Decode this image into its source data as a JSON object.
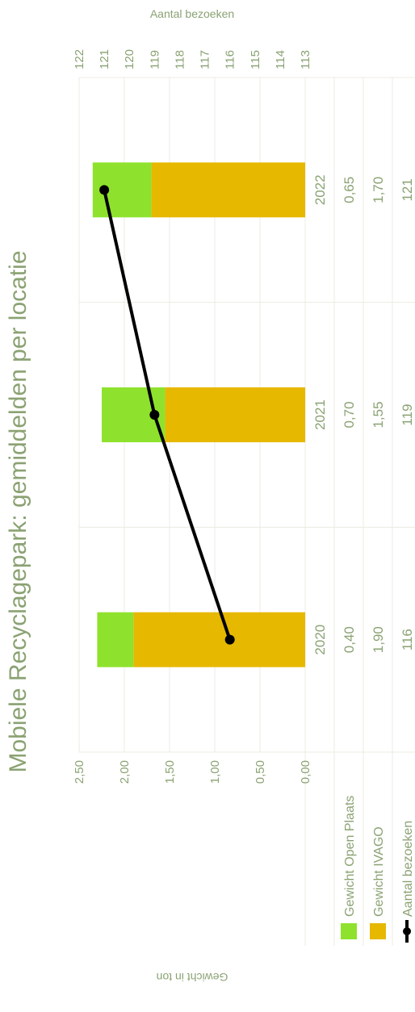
{
  "chart_data": {
    "type": "bar",
    "title": "Mobiele Recyclagepark: gemiddelden per locatie",
    "categories": [
      "2020",
      "2021",
      "2022"
    ],
    "series": [
      {
        "name": "Gewicht Open Plaats",
        "kind": "bar",
        "axis": "left",
        "color": "#8ee22d",
        "values": [
          "0,40",
          "0,70",
          "0,65"
        ],
        "numeric": [
          0.4,
          0.7,
          0.65
        ]
      },
      {
        "name": "Gewicht IVAGO",
        "kind": "bar",
        "axis": "left",
        "color": "#e6b800",
        "values": [
          "1,90",
          "1,55",
          "1,70"
        ],
        "numeric": [
          1.9,
          1.55,
          1.7
        ]
      },
      {
        "name": "Aantal bezoeken",
        "kind": "line",
        "axis": "right",
        "color": "#000000",
        "values": [
          "116",
          "119",
          "121"
        ],
        "numeric": [
          116,
          119,
          121
        ]
      }
    ],
    "y_left": {
      "label": "Gewicht in ton",
      "ylim": [
        0,
        2.5
      ],
      "ticks": [
        "0,00",
        "0,50",
        "1,00",
        "1,50",
        "2,00",
        "2,50"
      ],
      "tick_values": [
        0,
        0.5,
        1.0,
        1.5,
        2.0,
        2.5
      ]
    },
    "y_right": {
      "label": "Aantal bezoeken",
      "ylim": [
        113,
        122
      ],
      "ticks": [
        "113",
        "114",
        "115",
        "116",
        "117",
        "118",
        "119",
        "120",
        "121",
        "122"
      ],
      "tick_values": [
        113,
        114,
        115,
        116,
        117,
        118,
        119,
        120,
        121,
        122
      ]
    },
    "legend_placement": "bottom-left (data table)",
    "stacked": true,
    "grid": true
  }
}
